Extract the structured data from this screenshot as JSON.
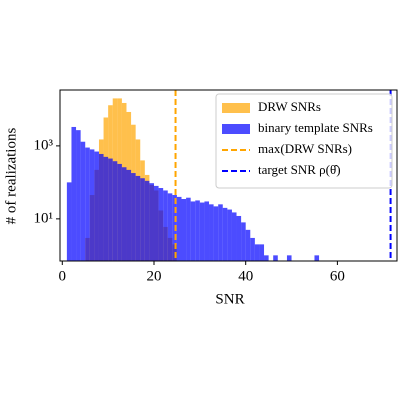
{
  "chart_data": {
    "type": "histogram",
    "xlabel": "SNR",
    "ylabel": "# of realizations",
    "xlim": [
      -0.5,
      73
    ],
    "xticks": [
      0,
      20,
      40,
      60
    ],
    "ylim": [
      0.7,
      34000
    ],
    "log_y": true,
    "yticks": [
      {
        "value": 10,
        "label": "10¹"
      },
      {
        "value": 1000,
        "label": "10³"
      }
    ],
    "legend": "upper right",
    "series": [
      {
        "name": "DRW SNRs",
        "color": "#ffa500",
        "bins": [
          5,
          6,
          7,
          8,
          9,
          10,
          11,
          12,
          13,
          14,
          15,
          16,
          17,
          18,
          19,
          20,
          21,
          22,
          23,
          24,
          25
        ],
        "values": [
          3,
          45,
          220,
          1500,
          6000,
          13000,
          20000,
          20000,
          15000,
          8500,
          3800,
          1500,
          400,
          160,
          85,
          60,
          17,
          6,
          3,
          2
        ]
      },
      {
        "name": "binary template SNRs",
        "color": "#0000ff",
        "bins": [
          1,
          2,
          3,
          4,
          5,
          6,
          7,
          8,
          9,
          10,
          11,
          12,
          13,
          14,
          15,
          16,
          17,
          18,
          19,
          20,
          21,
          22,
          23,
          24,
          25,
          26,
          27,
          28,
          29,
          30,
          31,
          32,
          33,
          34,
          35,
          36,
          37,
          38,
          39,
          40,
          41,
          42,
          43,
          44,
          45,
          46,
          47,
          48,
          49,
          50,
          51,
          52,
          53,
          54,
          55,
          56
        ],
        "values": [
          100,
          3300,
          2700,
          1300,
          900,
          800,
          700,
          600,
          500,
          450,
          380,
          320,
          260,
          220,
          180,
          150,
          130,
          110,
          95,
          80,
          70,
          60,
          50,
          45,
          40,
          35,
          38,
          30,
          32,
          28,
          30,
          25,
          22,
          25,
          20,
          18,
          15,
          12,
          8,
          5,
          3,
          2,
          2,
          1,
          0,
          1,
          0,
          0,
          1,
          0,
          0,
          0,
          0,
          0,
          1
        ]
      }
    ],
    "vlines": [
      {
        "name": "max(DRW SNRs)",
        "color": "#ffa500",
        "x": 24.7
      },
      {
        "name": "target SNR ρ(θ̂)",
        "color": "#0000ff",
        "x": 71.6
      }
    ]
  }
}
